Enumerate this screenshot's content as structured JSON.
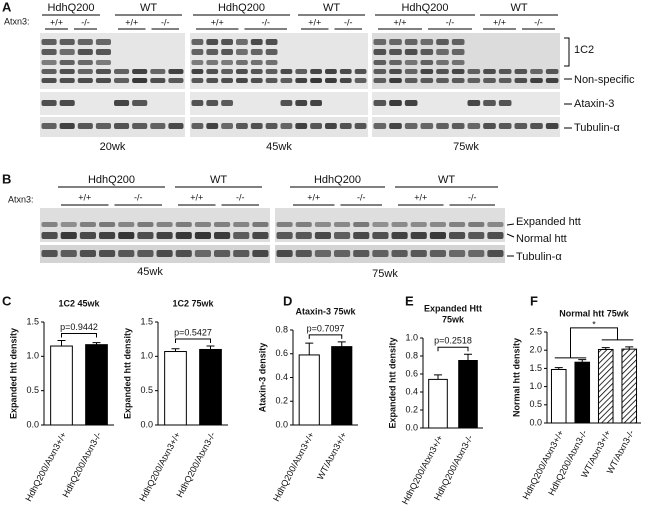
{
  "panel_labels": [
    "A",
    "B",
    "C",
    "D",
    "E",
    "F"
  ],
  "blot_a": {
    "row_label": "Atxn3:",
    "groups": [
      "HdhQ200",
      "WT",
      "HdhQ200",
      "WT",
      "HdhQ200",
      "WT"
    ],
    "genotypes": [
      "+/+",
      "-/-",
      "+/+",
      "-/-",
      "+/+",
      "-/-",
      "+/+",
      "-/-",
      "+/+",
      "-/-",
      "+/+",
      "-/-"
    ],
    "timepoints": [
      "20wk",
      "45wk",
      "75wk"
    ],
    "bands": [
      "1C2",
      "Non-specific",
      "Ataxin-3",
      "Tubulin-α"
    ]
  },
  "blot_b": {
    "row_label": "Atxn3:",
    "groups": [
      "HdhQ200",
      "WT",
      "HdhQ200",
      "WT"
    ],
    "genotypes": [
      "+/+",
      "-/-",
      "+/+",
      "-/-",
      "+/+",
      "-/-",
      "+/+",
      "-/-"
    ],
    "timepoints": [
      "45wk",
      "75wk"
    ],
    "bands": [
      "Expanded htt",
      "Normal htt",
      "Tubulin-α"
    ]
  },
  "chart_data": [
    {
      "type": "bar",
      "title": [
        "1C2 45wk"
      ],
      "y_label": "Expanded htt density",
      "categories": [
        "HdhQ200/Atxn3+/+",
        "HdhQ200/Atxn3-/-"
      ],
      "values": [
        1.15,
        1.17
      ],
      "errors": [
        0.08,
        0.03
      ],
      "colors": [
        "#ffffff",
        "#000000"
      ],
      "hatch": [
        false,
        false
      ],
      "ylim": [
        0,
        1.5
      ],
      "yticks": [
        {
          "value": 0,
          "label": "0.0"
        },
        {
          "value": 0.5,
          "label": "0.5"
        },
        {
          "value": 1,
          "label": "1.0"
        },
        {
          "value": 1.5,
          "label": "1.5"
        }
      ],
      "annotation": "p=0.9442"
    },
    {
      "type": "bar",
      "title": [
        "1C2 75wk"
      ],
      "y_label": "Expanded htt density",
      "categories": [
        "HdhQ200/Atxn3+/+",
        "HdhQ200/Atxn3-/-"
      ],
      "values": [
        1.07,
        1.1
      ],
      "errors": [
        0.04,
        0.05
      ],
      "colors": [
        "#ffffff",
        "#000000"
      ],
      "hatch": [
        false,
        false
      ],
      "ylim": [
        0,
        1.5
      ],
      "yticks": [
        {
          "value": 0,
          "label": "0.0"
        },
        {
          "value": 0.5,
          "label": "0.5"
        },
        {
          "value": 1,
          "label": "1.0"
        },
        {
          "value": 1.5,
          "label": "1.5"
        }
      ],
      "annotation": "p=0.5427"
    },
    {
      "type": "bar",
      "title": [
        "Ataxin-3 75wk"
      ],
      "y_label": "Ataxin-3 density",
      "categories": [
        "HdhQ200/Atxn3+/+",
        "WT/Atxn3+/+"
      ],
      "values": [
        0.59,
        0.66
      ],
      "errors": [
        0.1,
        0.04
      ],
      "colors": [
        "#ffffff",
        "#000000"
      ],
      "hatch": [
        false,
        false
      ],
      "ylim": [
        0,
        0.8
      ],
      "yticks": [
        {
          "value": 0,
          "label": "0.0"
        },
        {
          "value": 0.2,
          "label": "0.2"
        },
        {
          "value": 0.4,
          "label": "0.4"
        },
        {
          "value": 0.6,
          "label": "0.6"
        },
        {
          "value": 0.8,
          "label": "0.8"
        }
      ],
      "annotation": "p=0.7097"
    },
    {
      "type": "bar",
      "title": [
        "Expanded Htt",
        "75wk"
      ],
      "y_label": "Expanded htt density",
      "categories": [
        "HdhQ200/Atxn3+/+",
        "HdhQ200/Atxn3-/-"
      ],
      "values": [
        0.54,
        0.75
      ],
      "errors": [
        0.05,
        0.07
      ],
      "colors": [
        "#ffffff",
        "#000000"
      ],
      "hatch": [
        false,
        false
      ],
      "ylim": [
        0,
        1
      ],
      "yticks": [
        {
          "value": 0,
          "label": "0.0"
        },
        {
          "value": 0.2,
          "label": "0.2"
        },
        {
          "value": 0.4,
          "label": "0.4"
        },
        {
          "value": 0.6,
          "label": "0.6"
        },
        {
          "value": 0.8,
          "label": "0.8"
        },
        {
          "value": 1,
          "label": "1.0"
        }
      ],
      "annotation": "p=0.2518"
    },
    {
      "type": "bar",
      "title": [
        "Normal htt 75wk"
      ],
      "y_label": "Normal htt density",
      "categories": [
        "HdhQ200/Atxn3+/+",
        "HdhQ200/Atxn3-/-",
        "WT/Atxn3+/+",
        "WT/Atxn3-/-"
      ],
      "values": [
        1.47,
        1.67,
        2.02,
        2.03
      ],
      "errors": [
        0.05,
        0.07,
        0.05,
        0.06
      ],
      "colors": [
        "#ffffff",
        "#000000",
        "#ffffff",
        "#ffffff"
      ],
      "hatch": [
        false,
        false,
        true,
        true
      ],
      "ylim": [
        0,
        2.5
      ],
      "yticks": [
        {
          "value": 0,
          "label": "0.0"
        },
        {
          "value": 0.5,
          "label": "0.5"
        },
        {
          "value": 1,
          "label": "1.0"
        },
        {
          "value": 1.5,
          "label": "1.5"
        },
        {
          "value": 2,
          "label": "2.0"
        },
        {
          "value": 2.5,
          "label": "2.5"
        }
      ],
      "annotation": "*"
    }
  ]
}
